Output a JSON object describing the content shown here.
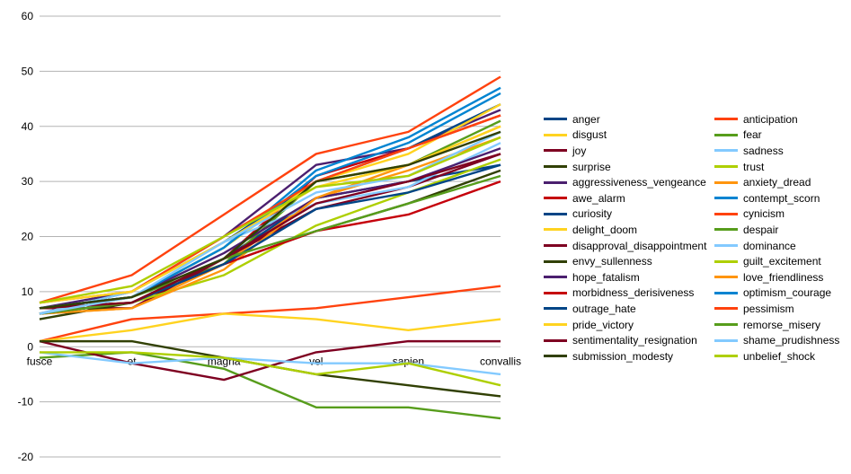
{
  "chart_data": {
    "type": "line",
    "categories": [
      "fusce",
      "et",
      "magna",
      "vel",
      "sapien",
      "convallis"
    ],
    "ylim": [
      -20,
      60
    ],
    "yticks": [
      -20,
      -10,
      0,
      10,
      20,
      30,
      40,
      50,
      60
    ],
    "grid": true,
    "legend_position": "right",
    "series": [
      {
        "name": "anger",
        "color": "#004586",
        "values": [
          7,
          8,
          16,
          27,
          30,
          33
        ]
      },
      {
        "name": "anticipation",
        "color": "#ff420e",
        "values": [
          1,
          5,
          6,
          7,
          9,
          11
        ]
      },
      {
        "name": "disgust",
        "color": "#ffd320",
        "values": [
          1,
          3,
          6,
          5,
          3,
          5
        ]
      },
      {
        "name": "fear",
        "color": "#579d1c",
        "values": [
          -2,
          -1,
          -4,
          -11,
          -11,
          -13
        ]
      },
      {
        "name": "joy",
        "color": "#7e0021",
        "values": [
          1,
          -3,
          -6,
          -1,
          1,
          1
        ]
      },
      {
        "name": "sadness",
        "color": "#83caff",
        "values": [
          -1,
          -3,
          -2,
          -3,
          -3,
          -5
        ]
      },
      {
        "name": "surprise",
        "color": "#314004",
        "values": [
          1,
          1,
          -2,
          -5,
          -7,
          -9
        ]
      },
      {
        "name": "trust",
        "color": "#aecf00",
        "values": [
          -1,
          -1,
          -2,
          -5,
          -3,
          -7
        ]
      },
      {
        "name": "aggressiveness_vengeance",
        "color": "#4b1f6f",
        "values": [
          7,
          10,
          20,
          33,
          36,
          43
        ]
      },
      {
        "name": "anxiety_dread",
        "color": "#ff950e",
        "values": [
          6,
          7,
          15,
          27,
          32,
          38
        ]
      },
      {
        "name": "awe_alarm",
        "color": "#c5000b",
        "values": [
          7,
          8,
          16,
          31,
          36,
          42
        ]
      },
      {
        "name": "contempt_scorn",
        "color": "#0084d1",
        "values": [
          7,
          9,
          18,
          32,
          38,
          47
        ]
      },
      {
        "name": "curiosity",
        "color": "#004586",
        "values": [
          6,
          10,
          19,
          30,
          36,
          44
        ]
      },
      {
        "name": "cynicism",
        "color": "#ff420e",
        "values": [
          8,
          13,
          24,
          35,
          39,
          49
        ]
      },
      {
        "name": "delight_doom",
        "color": "#ffd320",
        "values": [
          7,
          9,
          18,
          30,
          35,
          44
        ]
      },
      {
        "name": "despair",
        "color": "#579d1c",
        "values": [
          6,
          9,
          15,
          30,
          33,
          41
        ]
      },
      {
        "name": "disapproval_disappointment",
        "color": "#7e0021",
        "values": [
          7,
          7,
          16,
          25,
          29,
          35
        ]
      },
      {
        "name": "dominance",
        "color": "#83caff",
        "values": [
          6,
          10,
          19,
          26,
          29,
          37
        ]
      },
      {
        "name": "envy_sullenness",
        "color": "#314004",
        "values": [
          5,
          8,
          15,
          21,
          26,
          32
        ]
      },
      {
        "name": "guilt_excitement",
        "color": "#aecf00",
        "values": [
          7,
          8,
          13,
          22,
          28,
          34
        ]
      },
      {
        "name": "hope_fatalism",
        "color": "#4b1f6f",
        "values": [
          7,
          9,
          17,
          27,
          30,
          36
        ]
      },
      {
        "name": "love_friendliness",
        "color": "#ff950e",
        "values": [
          6,
          7,
          14,
          27,
          33,
          40
        ]
      },
      {
        "name": "morbidness_derisiveness",
        "color": "#c5000b",
        "values": [
          6,
          8,
          15,
          21,
          24,
          30
        ]
      },
      {
        "name": "optimism_courage",
        "color": "#0084d1",
        "values": [
          7,
          9,
          18,
          31,
          37,
          46
        ]
      },
      {
        "name": "outrage_hate",
        "color": "#004586",
        "values": [
          6,
          8,
          15,
          25,
          28,
          33
        ]
      },
      {
        "name": "pessimism",
        "color": "#ff420e",
        "values": [
          8,
          10,
          20,
          30,
          36,
          42
        ]
      },
      {
        "name": "pride_victory",
        "color": "#ffd320",
        "values": [
          8,
          10,
          19,
          29,
          33,
          40
        ]
      },
      {
        "name": "remorse_misery",
        "color": "#579d1c",
        "values": [
          6,
          8,
          16,
          21,
          26,
          31
        ]
      },
      {
        "name": "sentimentality_resignation",
        "color": "#7e0021",
        "values": [
          7,
          8,
          16,
          26,
          30,
          35
        ]
      },
      {
        "name": "shame_prudishness",
        "color": "#83caff",
        "values": [
          6,
          9,
          19,
          28,
          31,
          39
        ]
      },
      {
        "name": "submission_modesty",
        "color": "#314004",
        "values": [
          7,
          9,
          16,
          30,
          33,
          39
        ]
      },
      {
        "name": "unbelief_shock",
        "color": "#aecf00",
        "values": [
          8,
          11,
          20,
          29,
          31,
          38
        ]
      }
    ]
  }
}
